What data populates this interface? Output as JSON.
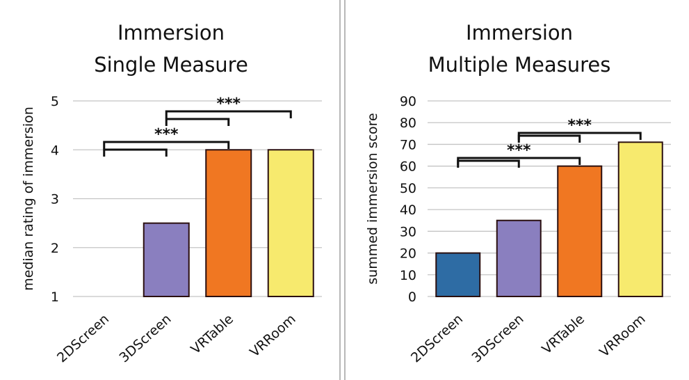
{
  "chart_data": [
    {
      "type": "bar",
      "title": [
        "Immersion",
        "Single Measure"
      ],
      "ylabel": "median rating of immersion",
      "xlabel": "",
      "categories": [
        "2DScreen",
        "3DScreen",
        "VRTable",
        "VRRoom"
      ],
      "values": [
        1,
        2.5,
        4,
        4
      ],
      "colors": [
        "#2e6ca4",
        "#8a7fbf",
        "#f07722",
        "#f7ea6e"
      ],
      "ylim": [
        1,
        5
      ],
      "yticks": [
        1,
        2,
        3,
        4,
        5
      ],
      "grid": true,
      "significance": [
        {
          "from": 0,
          "to": 1,
          "label": ""
        },
        {
          "from": 0,
          "to": 2,
          "label": "***"
        },
        {
          "from": 1,
          "to": 2,
          "label": ""
        },
        {
          "from": 1,
          "to": 3,
          "label": "***"
        }
      ]
    },
    {
      "type": "bar",
      "title": [
        "Immersion",
        "Multiple Measures"
      ],
      "ylabel": "summed immersion score",
      "xlabel": "",
      "categories": [
        "2DScreen",
        "3DScreen",
        "VRTable",
        "VRRoom"
      ],
      "values": [
        20,
        35,
        60,
        71
      ],
      "colors": [
        "#2e6ca4",
        "#8a7fbf",
        "#f07722",
        "#f7ea6e"
      ],
      "ylim": [
        0,
        90
      ],
      "yticks": [
        0,
        10,
        20,
        30,
        40,
        50,
        60,
        70,
        80,
        90
      ],
      "grid": true,
      "significance": [
        {
          "from": 0,
          "to": 1,
          "label": ""
        },
        {
          "from": 0,
          "to": 2,
          "label": "***"
        },
        {
          "from": 1,
          "to": 2,
          "label": ""
        },
        {
          "from": 1,
          "to": 3,
          "label": "***"
        }
      ]
    }
  ]
}
